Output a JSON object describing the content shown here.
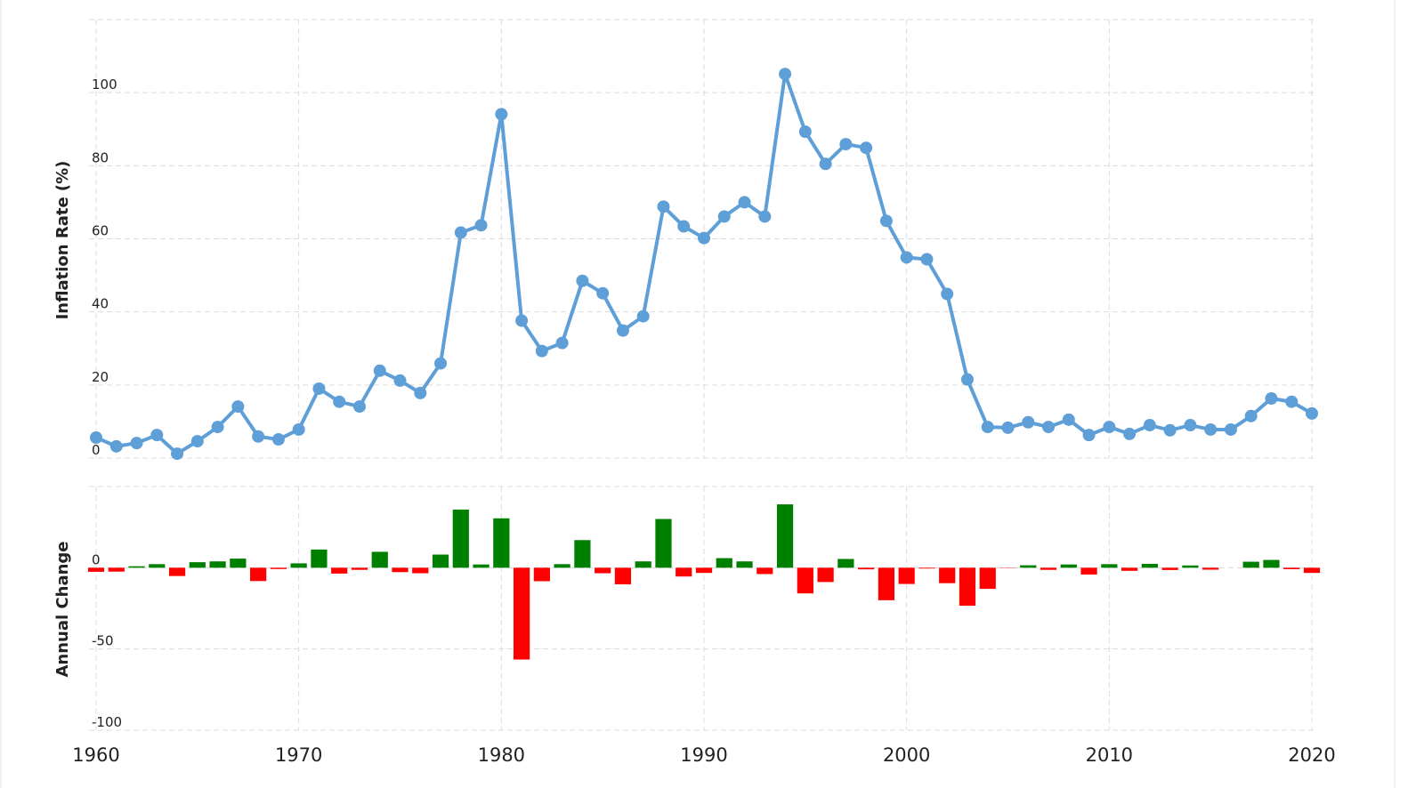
{
  "chart_data": [
    {
      "type": "line",
      "ylabel": "Inflation Rate (%)",
      "color": "#5f9fd8",
      "x": [
        1960,
        1961,
        1962,
        1963,
        1964,
        1965,
        1966,
        1967,
        1968,
        1969,
        1970,
        1971,
        1972,
        1973,
        1974,
        1975,
        1976,
        1977,
        1978,
        1979,
        1980,
        1981,
        1982,
        1983,
        1984,
        1985,
        1986,
        1987,
        1988,
        1989,
        1990,
        1991,
        1992,
        1993,
        1994,
        1995,
        1996,
        1997,
        1998,
        1999,
        2000,
        2001,
        2002,
        2003,
        2004,
        2005,
        2006,
        2007,
        2008,
        2009,
        2010,
        2011,
        2012,
        2013,
        2014,
        2015,
        2016,
        2017,
        2018,
        2019,
        2020
      ],
      "values": [
        5.6,
        3.2,
        4.1,
        6.3,
        1.2,
        4.6,
        8.5,
        14.1,
        5.9,
        5.1,
        7.8,
        19.0,
        15.4,
        14.1,
        23.9,
        21.2,
        17.8,
        25.9,
        61.7,
        63.7,
        94.1,
        37.6,
        29.3,
        31.5,
        48.5,
        45.1,
        34.9,
        38.8,
        68.8,
        63.4,
        60.2,
        66.1,
        70.0,
        66.1,
        105.1,
        89.3,
        80.5,
        85.9,
        84.9,
        64.9,
        54.9,
        54.4,
        44.9,
        21.5,
        8.5,
        8.3,
        9.8,
        8.5,
        10.5,
        6.3,
        8.5,
        6.6,
        9.0,
        7.6,
        9.0,
        7.8,
        7.8,
        11.5,
        16.3,
        15.4,
        12.2
      ],
      "xlim": [
        1960,
        2020
      ],
      "xticks": [
        1960,
        1970,
        1980,
        1990,
        2000,
        2010,
        2020
      ],
      "ylim": [
        0,
        120
      ],
      "yticks": [
        0,
        20,
        40,
        60,
        80,
        100
      ],
      "grid": true
    },
    {
      "type": "bar",
      "ylabel": "Annual Change",
      "positive_color": "#008000",
      "negative_color": "#ff0000",
      "x": [
        1960,
        1961,
        1962,
        1963,
        1964,
        1965,
        1966,
        1967,
        1968,
        1969,
        1970,
        1971,
        1972,
        1973,
        1974,
        1975,
        1976,
        1977,
        1978,
        1979,
        1980,
        1981,
        1982,
        1983,
        1984,
        1985,
        1986,
        1987,
        1988,
        1989,
        1990,
        1991,
        1992,
        1993,
        1994,
        1995,
        1996,
        1997,
        1998,
        1999,
        2000,
        2001,
        2002,
        2003,
        2004,
        2005,
        2006,
        2007,
        2008,
        2009,
        2010,
        2011,
        2012,
        2013,
        2014,
        2015,
        2016,
        2017,
        2018,
        2019,
        2020
      ],
      "values": [
        -2.5,
        -2.4,
        0.9,
        2.2,
        -5.1,
        3.4,
        3.9,
        5.6,
        -8.2,
        -0.8,
        2.7,
        11.2,
        -3.6,
        -1.3,
        9.8,
        -2.7,
        -3.4,
        8.1,
        35.8,
        2.0,
        30.4,
        -56.5,
        -8.3,
        2.2,
        17.0,
        -3.4,
        -10.2,
        3.9,
        30.0,
        -5.4,
        -3.2,
        5.9,
        3.9,
        -3.9,
        39.0,
        -15.8,
        -8.8,
        5.4,
        -1.0,
        -20.0,
        -10.0,
        -0.5,
        -9.5,
        -23.4,
        -13.0,
        -0.2,
        1.5,
        -1.3,
        2.0,
        -4.2,
        2.2,
        -1.9,
        2.4,
        -1.4,
        1.4,
        -1.2,
        0.0,
        3.7,
        4.8,
        -0.9,
        -3.2
      ],
      "xlim": [
        1960,
        2020
      ],
      "xticks": [
        1960,
        1970,
        1980,
        1990,
        2000,
        2010,
        2020
      ],
      "ylim": [
        -100,
        50
      ],
      "yticks": [
        -100,
        -50,
        0
      ],
      "grid": true
    }
  ]
}
